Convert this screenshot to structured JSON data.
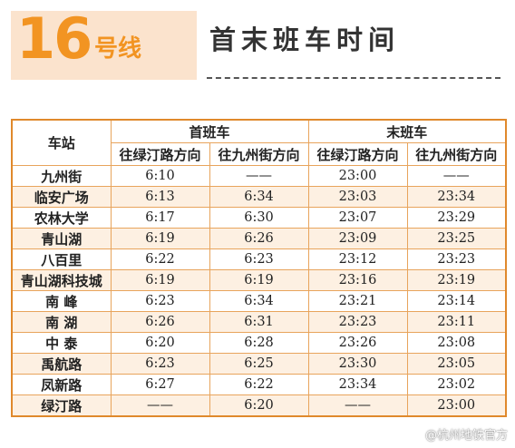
{
  "header": {
    "line_number": "16",
    "line_suffix": "号线",
    "title": "首末班车时间"
  },
  "table": {
    "station_header": "车站",
    "first_train_header": "首班车",
    "last_train_header": "末班车",
    "direction_lvtinglu": "往绿汀路方向",
    "direction_jiuzhoujie": "往九州街方向",
    "rows": [
      {
        "station": "九州街",
        "first_lvtinglu": "6:10",
        "first_jiuzhoujie": "——",
        "last_lvtinglu": "23:00",
        "last_jiuzhoujie": "——"
      },
      {
        "station": "临安广场",
        "first_lvtinglu": "6:13",
        "first_jiuzhoujie": "6:34",
        "last_lvtinglu": "23:03",
        "last_jiuzhoujie": "23:34"
      },
      {
        "station": "农林大学",
        "first_lvtinglu": "6:17",
        "first_jiuzhoujie": "6:30",
        "last_lvtinglu": "23:07",
        "last_jiuzhoujie": "23:29"
      },
      {
        "station": "青山湖",
        "first_lvtinglu": "6:19",
        "first_jiuzhoujie": "6:26",
        "last_lvtinglu": "23:09",
        "last_jiuzhoujie": "23:25"
      },
      {
        "station": "八百里",
        "first_lvtinglu": "6:22",
        "first_jiuzhoujie": "6:23",
        "last_lvtinglu": "23:12",
        "last_jiuzhoujie": "23:23"
      },
      {
        "station": "青山湖科技城",
        "first_lvtinglu": "6:19",
        "first_jiuzhoujie": "6:19",
        "last_lvtinglu": "23:16",
        "last_jiuzhoujie": "23:19"
      },
      {
        "station": "南 峰",
        "first_lvtinglu": "6:23",
        "first_jiuzhoujie": "6:34",
        "last_lvtinglu": "23:21",
        "last_jiuzhoujie": "23:14"
      },
      {
        "station": "南 湖",
        "first_lvtinglu": "6:26",
        "first_jiuzhoujie": "6:31",
        "last_lvtinglu": "23:23",
        "last_jiuzhoujie": "23:11"
      },
      {
        "station": "中 泰",
        "first_lvtinglu": "6:20",
        "first_jiuzhoujie": "6:28",
        "last_lvtinglu": "23:26",
        "last_jiuzhoujie": "23:08"
      },
      {
        "station": "禹航路",
        "first_lvtinglu": "6:23",
        "first_jiuzhoujie": "6:25",
        "last_lvtinglu": "23:30",
        "last_jiuzhoujie": "23:05"
      },
      {
        "station": "凤新路",
        "first_lvtinglu": "6:27",
        "first_jiuzhoujie": "6:22",
        "last_lvtinglu": "23:34",
        "last_jiuzhoujie": "23:02"
      },
      {
        "station": "绿汀路",
        "first_lvtinglu": "——",
        "first_jiuzhoujie": "6:20",
        "last_lvtinglu": "——",
        "last_jiuzhoujie": "23:00"
      }
    ]
  },
  "watermark": "@杭州地铁官方",
  "colors": {
    "accent_orange": "#f29422",
    "header_band": "#fbe3cd",
    "row_stripe": "#fdf0e2",
    "table_border": "#e0892c"
  }
}
